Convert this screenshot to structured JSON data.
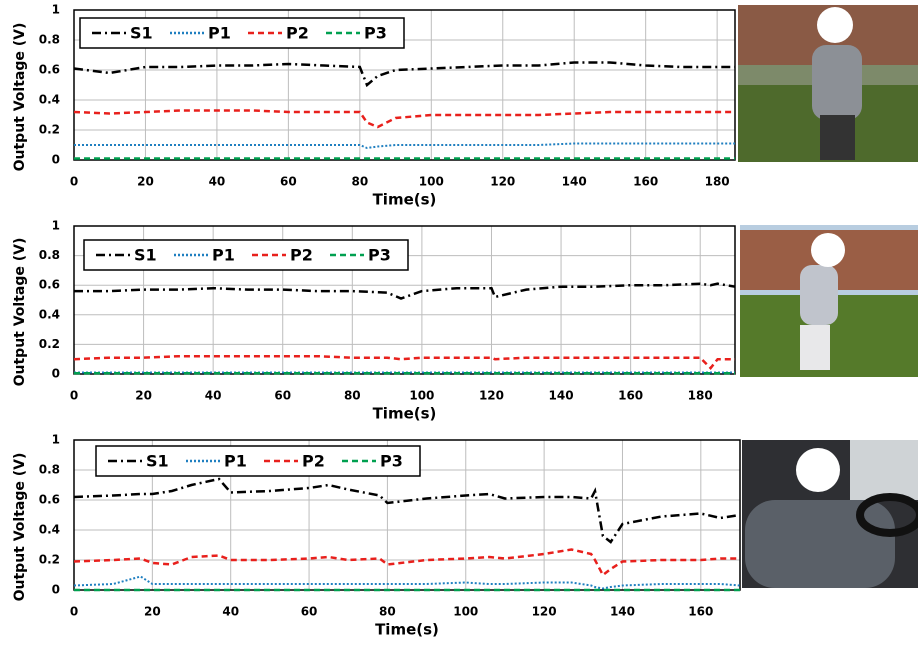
{
  "chart_data": [
    {
      "type": "line",
      "ylabel": "Output Voltage (V)",
      "xlabel": "Time(s)",
      "x": [
        0,
        10,
        20,
        30,
        40,
        50,
        60,
        70,
        80,
        82,
        85,
        90,
        100,
        110,
        120,
        130,
        140,
        150,
        160,
        170,
        180,
        185
      ],
      "series": [
        {
          "name": "S1",
          "color": "#000000",
          "dash": "dash-dot",
          "values": [
            0.61,
            0.58,
            0.62,
            0.62,
            0.63,
            0.63,
            0.64,
            0.63,
            0.62,
            0.5,
            0.56,
            0.6,
            0.61,
            0.62,
            0.63,
            0.63,
            0.65,
            0.65,
            0.63,
            0.62,
            0.62,
            0.62
          ]
        },
        {
          "name": "P1",
          "color": "#1f7fc0",
          "dash": "dot",
          "values": [
            0.1,
            0.1,
            0.1,
            0.1,
            0.1,
            0.1,
            0.1,
            0.1,
            0.1,
            0.08,
            0.09,
            0.1,
            0.1,
            0.1,
            0.1,
            0.1,
            0.11,
            0.11,
            0.11,
            0.11,
            0.11,
            0.11
          ]
        },
        {
          "name": "P2",
          "color": "#e8201c",
          "dash": "dash",
          "values": [
            0.32,
            0.31,
            0.32,
            0.33,
            0.33,
            0.33,
            0.32,
            0.32,
            0.32,
            0.25,
            0.22,
            0.28,
            0.3,
            0.3,
            0.3,
            0.3,
            0.31,
            0.32,
            0.32,
            0.32,
            0.32,
            0.32
          ]
        },
        {
          "name": "P3",
          "color": "#00a050",
          "dash": "dash",
          "values": [
            0.01,
            0.01,
            0.01,
            0.01,
            0.01,
            0.01,
            0.01,
            0.01,
            0.01,
            0.01,
            0.01,
            0.01,
            0.01,
            0.01,
            0.01,
            0.01,
            0.01,
            0.01,
            0.01,
            0.01,
            0.01,
            0.01
          ]
        }
      ],
      "xlim": [
        0,
        185
      ],
      "xticks": [
        0,
        20,
        40,
        60,
        80,
        100,
        120,
        140,
        160,
        180
      ],
      "ylim": [
        0,
        1
      ],
      "yticks": [
        0,
        0.2,
        0.4,
        0.6,
        0.8,
        1
      ],
      "grid": true
    },
    {
      "type": "line",
      "ylabel": "Output Voltage (V)",
      "xlabel": "Time(s)",
      "x": [
        0,
        10,
        20,
        30,
        40,
        50,
        60,
        70,
        80,
        90,
        94,
        100,
        110,
        120,
        121,
        130,
        140,
        150,
        160,
        170,
        180,
        183,
        185,
        190
      ],
      "series": [
        {
          "name": "S1",
          "color": "#000000",
          "dash": "dash-dot",
          "values": [
            0.56,
            0.56,
            0.57,
            0.57,
            0.58,
            0.57,
            0.57,
            0.56,
            0.56,
            0.55,
            0.51,
            0.56,
            0.58,
            0.58,
            0.52,
            0.57,
            0.59,
            0.59,
            0.6,
            0.6,
            0.61,
            0.6,
            0.61,
            0.59
          ]
        },
        {
          "name": "P1",
          "color": "#1f7fc0",
          "dash": "dot",
          "values": [
            0.01,
            0.01,
            0.01,
            0.01,
            0.01,
            0.01,
            0.01,
            0.01,
            0.01,
            0.01,
            0.01,
            0.01,
            0.01,
            0.01,
            0.01,
            0.01,
            0.01,
            0.01,
            0.01,
            0.01,
            0.01,
            0.01,
            0.01,
            0.01
          ]
        },
        {
          "name": "P2",
          "color": "#e8201c",
          "dash": "dash",
          "values": [
            0.1,
            0.11,
            0.11,
            0.12,
            0.12,
            0.12,
            0.12,
            0.12,
            0.11,
            0.11,
            0.1,
            0.11,
            0.11,
            0.11,
            0.1,
            0.11,
            0.11,
            0.11,
            0.11,
            0.11,
            0.11,
            0.04,
            0.1,
            0.1
          ]
        },
        {
          "name": "P3",
          "color": "#00a050",
          "dash": "dash",
          "values": [
            0.005,
            0.005,
            0.005,
            0.005,
            0.005,
            0.005,
            0.005,
            0.005,
            0.005,
            0.005,
            0.005,
            0.005,
            0.005,
            0.005,
            0.005,
            0.005,
            0.005,
            0.005,
            0.005,
            0.005,
            0.005,
            0.005,
            0.005,
            0.005
          ]
        }
      ],
      "xlim": [
        0,
        190
      ],
      "xticks": [
        0,
        20,
        40,
        60,
        80,
        100,
        120,
        140,
        160,
        180
      ],
      "ylim": [
        0,
        1
      ],
      "yticks": [
        0,
        0.2,
        0.4,
        0.6,
        0.8,
        1
      ],
      "grid": true
    },
    {
      "type": "line",
      "ylabel": "Output Voltage (V)",
      "xlabel": "Time(s)",
      "x": [
        0,
        10,
        17,
        20,
        25,
        30,
        37,
        40,
        50,
        60,
        65,
        70,
        78,
        80,
        90,
        100,
        106,
        110,
        120,
        127,
        132,
        133,
        135,
        137,
        140,
        150,
        160,
        165,
        170
      ],
      "series": [
        {
          "name": "S1",
          "color": "#000000",
          "dash": "dash-dot",
          "values": [
            0.62,
            0.63,
            0.64,
            0.64,
            0.66,
            0.7,
            0.74,
            0.65,
            0.66,
            0.68,
            0.7,
            0.67,
            0.63,
            0.58,
            0.61,
            0.63,
            0.64,
            0.61,
            0.62,
            0.62,
            0.61,
            0.66,
            0.36,
            0.32,
            0.44,
            0.49,
            0.51,
            0.48,
            0.5
          ]
        },
        {
          "name": "P1",
          "color": "#1f7fc0",
          "dash": "dot",
          "values": [
            0.03,
            0.04,
            0.09,
            0.04,
            0.04,
            0.04,
            0.04,
            0.04,
            0.04,
            0.04,
            0.04,
            0.04,
            0.04,
            0.04,
            0.04,
            0.05,
            0.04,
            0.04,
            0.05,
            0.05,
            0.03,
            0.02,
            0.01,
            0.02,
            0.03,
            0.04,
            0.04,
            0.04,
            0.03
          ]
        },
        {
          "name": "P2",
          "color": "#e8201c",
          "dash": "dash",
          "values": [
            0.19,
            0.2,
            0.21,
            0.18,
            0.17,
            0.22,
            0.23,
            0.2,
            0.2,
            0.21,
            0.22,
            0.2,
            0.21,
            0.17,
            0.2,
            0.21,
            0.22,
            0.21,
            0.24,
            0.27,
            0.24,
            0.2,
            0.1,
            0.14,
            0.19,
            0.2,
            0.2,
            0.21,
            0.21
          ]
        },
        {
          "name": "P3",
          "color": "#00a050",
          "dash": "dash",
          "values": [
            0,
            0,
            0,
            0,
            0,
            0,
            0,
            0,
            0,
            0,
            0,
            0,
            0,
            0,
            0,
            0,
            0,
            0,
            0,
            0,
            0,
            0,
            0,
            0,
            0,
            0,
            0,
            0,
            0
          ]
        }
      ],
      "xlim": [
        0,
        170
      ],
      "xticks": [
        0,
        20,
        40,
        60,
        80,
        100,
        120,
        140,
        160
      ],
      "ylim": [
        0,
        1
      ],
      "yticks": [
        0,
        0.2,
        0.4,
        0.6,
        0.8,
        1
      ],
      "grid": true
    }
  ]
}
